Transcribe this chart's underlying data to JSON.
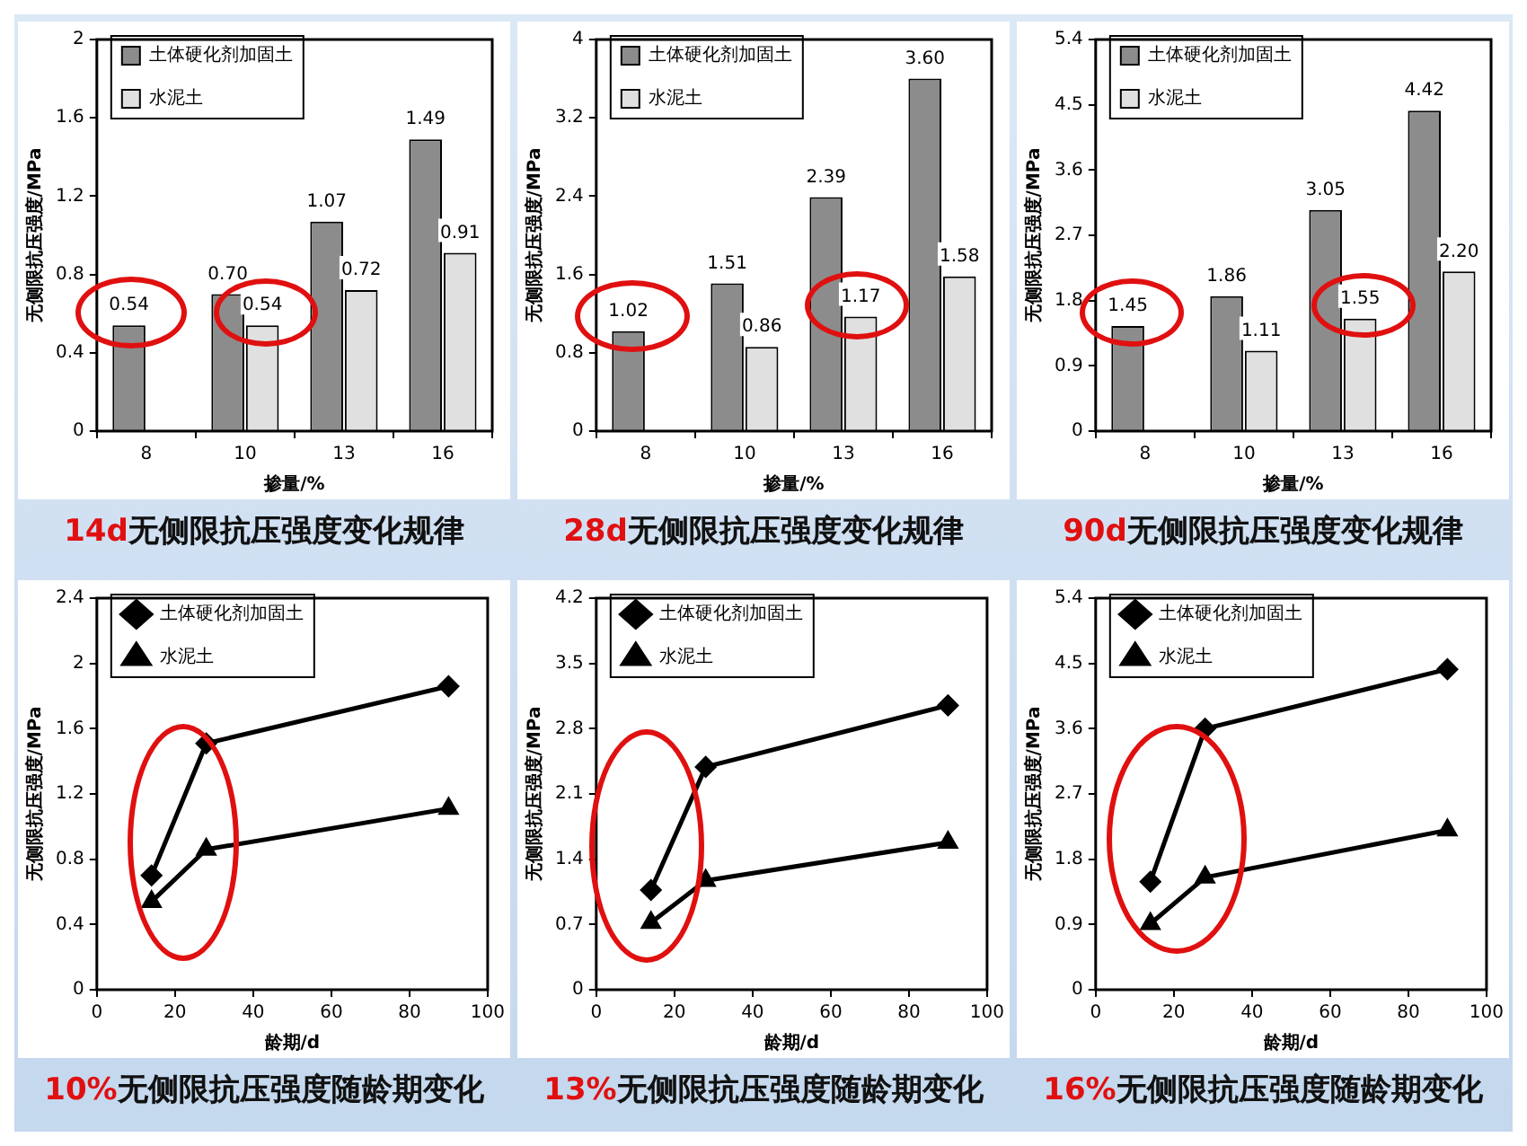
{
  "chart_data": [
    {
      "type": "bar",
      "title": "14d无侧限抗压强度变化规律",
      "xlabel": "掺量/%",
      "ylabel": "无侧限抗压强度/MPa",
      "categories": [
        "8",
        "10",
        "13",
        "16"
      ],
      "ylim": [
        0,
        2
      ],
      "yticks": [
        0,
        0.4,
        0.8,
        1.2,
        1.6,
        2
      ],
      "legend": "top left",
      "series": [
        {
          "name": "土体硬化剂加固土",
          "color": "#8c8c8c",
          "values": [
            0.54,
            0.7,
            1.07,
            1.49
          ],
          "value_labels": [
            "0.54",
            "0.70",
            "1.07",
            "1.49"
          ]
        },
        {
          "name": "水泥土",
          "color": "#e0e0e0",
          "values": [
            null,
            0.54,
            0.72,
            0.91
          ],
          "value_labels": [
            null,
            "0.54",
            "0.72",
            "0.91"
          ]
        }
      ]
    },
    {
      "type": "bar",
      "title": "28d无侧限抗压强度变化规律",
      "xlabel": "掺量/%",
      "ylabel": "无侧限抗压强度/MPa",
      "categories": [
        "8",
        "10",
        "13",
        "16"
      ],
      "ylim": [
        0,
        4
      ],
      "yticks": [
        0,
        0.8,
        1.6,
        2.4,
        3.2,
        4
      ],
      "legend": "top left",
      "series": [
        {
          "name": "土体硬化剂加固土",
          "color": "#8c8c8c",
          "values": [
            1.02,
            1.51,
            2.39,
            3.6
          ],
          "value_labels": [
            "1.02",
            "1.51",
            "2.39",
            "3.60"
          ]
        },
        {
          "name": "水泥土",
          "color": "#e0e0e0",
          "values": [
            null,
            0.86,
            1.17,
            1.58
          ],
          "value_labels": [
            null,
            "0.86",
            "1.17",
            "1.58"
          ]
        }
      ]
    },
    {
      "type": "bar",
      "title": "90d无侧限抗压强度变化规律",
      "xlabel": "掺量/%",
      "ylabel": "无侧限抗压强度/MPa",
      "categories": [
        "8",
        "10",
        "13",
        "16"
      ],
      "ylim": [
        0,
        5.4
      ],
      "yticks": [
        0,
        0.9,
        1.8,
        2.7,
        3.6,
        4.5,
        5.4
      ],
      "legend": "top left",
      "series": [
        {
          "name": "土体硬化剂加固土",
          "color": "#8c8c8c",
          "values": [
            1.45,
            1.86,
            3.05,
            4.42
          ],
          "value_labels": [
            "1.45",
            "1.86",
            "3.05",
            "4.42"
          ]
        },
        {
          "name": "水泥土",
          "color": "#e0e0e0",
          "values": [
            null,
            1.11,
            1.55,
            2.2
          ],
          "value_labels": [
            null,
            "1.11",
            "1.55",
            "2.20"
          ]
        }
      ]
    },
    {
      "type": "line",
      "title": "10%无侧限抗压强度随龄期变化",
      "xlabel": "龄期/d",
      "ylabel": "无侧限抗压强度/MPa",
      "x": [
        14,
        28,
        90
      ],
      "xlim": [
        0,
        100
      ],
      "xticks": [
        0,
        20,
        40,
        60,
        80,
        100
      ],
      "ylim": [
        0,
        2.4
      ],
      "yticks": [
        0,
        0.4,
        0.8,
        1.2,
        1.6,
        2,
        2.4
      ],
      "legend": "top left",
      "series": [
        {
          "name": "土体硬化剂加固土",
          "color": "#000000",
          "marker": "diamond",
          "values": [
            0.7,
            1.51,
            1.86
          ]
        },
        {
          "name": "水泥土",
          "color": "#000000",
          "marker": "triangle",
          "values": [
            0.54,
            0.86,
            1.11
          ]
        }
      ]
    },
    {
      "type": "line",
      "title": "13%无侧限抗压强度随龄期变化",
      "xlabel": "龄期/d",
      "ylabel": "无侧限抗压强度/MPa",
      "x": [
        14,
        28,
        90
      ],
      "xlim": [
        0,
        100
      ],
      "xticks": [
        0,
        20,
        40,
        60,
        80,
        100
      ],
      "ylim": [
        0,
        4.2
      ],
      "yticks": [
        0,
        0.7,
        1.4,
        2.1,
        2.8,
        3.5,
        4.2
      ],
      "legend": "top left",
      "series": [
        {
          "name": "土体硬化剂加固土",
          "color": "#000000",
          "marker": "diamond",
          "values": [
            1.07,
            2.39,
            3.05
          ]
        },
        {
          "name": "水泥土",
          "color": "#000000",
          "marker": "triangle",
          "values": [
            0.72,
            1.17,
            1.58
          ]
        }
      ]
    },
    {
      "type": "line",
      "title": "16%无侧限抗压强度随龄期变化",
      "xlabel": "龄期/d",
      "ylabel": "无侧限抗压强度/MPa",
      "x": [
        14,
        28,
        90
      ],
      "xlim": [
        0,
        100
      ],
      "xticks": [
        0,
        20,
        40,
        60,
        80,
        100
      ],
      "ylim": [
        0,
        5.4
      ],
      "yticks": [
        0,
        0.9,
        1.8,
        2.7,
        3.6,
        4.5,
        5.4
      ],
      "legend": "top left",
      "series": [
        {
          "name": "土体硬化剂加固土",
          "color": "#000000",
          "marker": "diamond",
          "values": [
            1.49,
            3.6,
            4.42
          ]
        },
        {
          "name": "水泥土",
          "color": "#000000",
          "marker": "triangle",
          "values": [
            0.91,
            1.55,
            2.2
          ]
        }
      ]
    }
  ]
}
